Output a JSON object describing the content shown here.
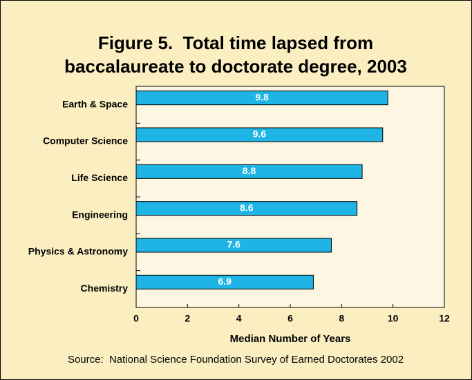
{
  "chart_data": {
    "type": "bar",
    "orientation": "horizontal",
    "title": [
      "Figure 5.  Total time lapsed from",
      "baccalaureate to doctorate degree, 2003"
    ],
    "categories": [
      "Earth & Space",
      "Computer Science",
      "Life Science",
      "Engineering",
      "Physics & Astronomy",
      "Chemistry"
    ],
    "values": [
      9.8,
      9.6,
      8.8,
      8.6,
      7.6,
      6.9
    ],
    "color": "#1eb4e6",
    "xlim": [
      0,
      12
    ],
    "xticks": [
      0,
      2,
      4,
      6,
      8,
      10,
      12
    ],
    "xlabel": "Median Number of Years",
    "source": "Source:  National Science Foundation Survey of Earned Doctorates 2002"
  }
}
